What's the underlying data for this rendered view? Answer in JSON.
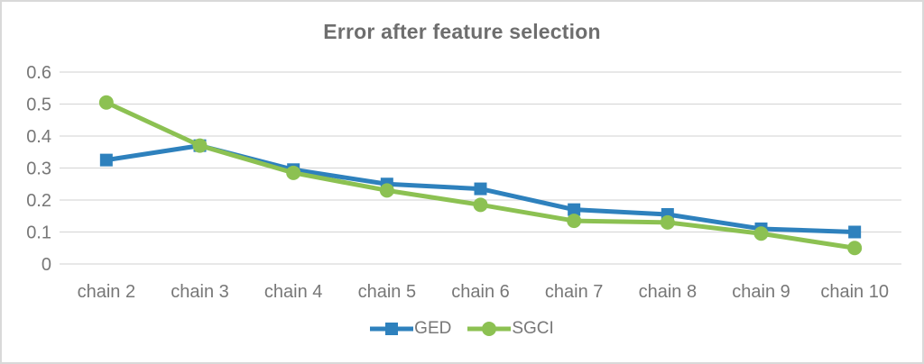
{
  "chart_data": {
    "type": "line",
    "title": "Error after feature selection",
    "categories": [
      "chain 2",
      "chain 3",
      "chain 4",
      "chain 5",
      "chain 6",
      "chain 7",
      "chain 8",
      "chain 9",
      "chain 10"
    ],
    "series": [
      {
        "name": "GED",
        "marker": "square",
        "color": "#2E81BD",
        "values": [
          0.325,
          0.37,
          0.295,
          0.25,
          0.235,
          0.17,
          0.155,
          0.11,
          0.1
        ]
      },
      {
        "name": "SGCI",
        "marker": "circle",
        "color": "#8CC152",
        "values": [
          0.505,
          0.37,
          0.285,
          0.23,
          0.185,
          0.135,
          0.13,
          0.095,
          0.05
        ]
      }
    ],
    "xlabel": "",
    "ylabel": "",
    "ylim": [
      0,
      0.6
    ],
    "yticks": [
      "0.6",
      "0.5",
      "0.4",
      "0.3",
      "0.2",
      "0.1",
      "0"
    ],
    "grid": true,
    "legend_position": "bottom",
    "colors": {
      "gridline": "#D9D9D9",
      "axis_text": "#777777",
      "title_text": "#6E6E6E",
      "legend_text": "#777777",
      "frame_border": "#D9D9D9"
    }
  }
}
